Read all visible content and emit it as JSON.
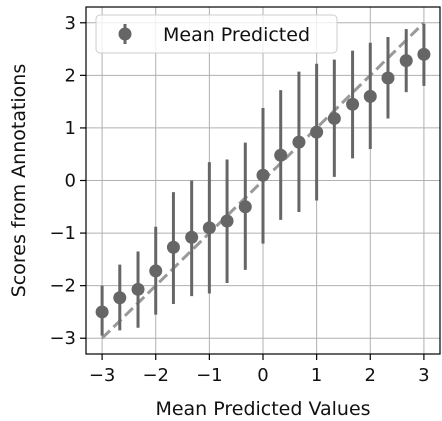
{
  "chart_data": {
    "type": "scatter",
    "title": "",
    "xlabel": "Mean Predicted Values",
    "ylabel": "Scores from Annotations",
    "xlim": [
      -3.3,
      3.3
    ],
    "ylim": [
      -3.3,
      3.3
    ],
    "xticks": [
      -3,
      -2,
      -1,
      0,
      1,
      2,
      3
    ],
    "yticks": [
      -3,
      -2,
      -1,
      0,
      1,
      2,
      3
    ],
    "xtick_labels": [
      "−3",
      "−2",
      "−1",
      "0",
      "1",
      "2",
      "3"
    ],
    "ytick_labels": [
      "−3",
      "−2",
      "−1",
      "0",
      "1",
      "2",
      "3"
    ],
    "grid": true,
    "legend": {
      "position": "top-left",
      "entries": [
        "Mean Predicted"
      ]
    },
    "marker_color": "#666666",
    "reference_line": {
      "style": "dashed",
      "color": "#999999",
      "from": [
        -3,
        -3
      ],
      "to": [
        3,
        3
      ]
    },
    "series": [
      {
        "name": "Mean Predicted",
        "points": [
          {
            "x": -3.0,
            "y": -2.5,
            "low": -2.95,
            "high": -2.0
          },
          {
            "x": -2.67,
            "y": -2.23,
            "low": -2.85,
            "high": -1.6
          },
          {
            "x": -2.33,
            "y": -2.07,
            "low": -2.8,
            "high": -1.35
          },
          {
            "x": -2.0,
            "y": -1.72,
            "low": -2.55,
            "high": -0.88
          },
          {
            "x": -1.67,
            "y": -1.27,
            "low": -2.35,
            "high": -0.22
          },
          {
            "x": -1.33,
            "y": -1.08,
            "low": -2.2,
            "high": 0.0
          },
          {
            "x": -1.0,
            "y": -0.9,
            "low": -2.15,
            "high": 0.35
          },
          {
            "x": -0.67,
            "y": -0.77,
            "low": -1.95,
            "high": 0.4
          },
          {
            "x": -0.33,
            "y": -0.5,
            "low": -1.7,
            "high": 0.72
          },
          {
            "x": 0.0,
            "y": 0.1,
            "low": -1.2,
            "high": 1.38
          },
          {
            "x": 0.33,
            "y": 0.48,
            "low": -0.75,
            "high": 1.72
          },
          {
            "x": 0.67,
            "y": 0.73,
            "low": -0.6,
            "high": 2.07
          },
          {
            "x": 1.0,
            "y": 0.92,
            "low": -0.38,
            "high": 2.22
          },
          {
            "x": 1.33,
            "y": 1.18,
            "low": 0.07,
            "high": 2.3
          },
          {
            "x": 1.67,
            "y": 1.45,
            "low": 0.42,
            "high": 2.47
          },
          {
            "x": 2.0,
            "y": 1.6,
            "low": 0.6,
            "high": 2.62
          },
          {
            "x": 2.33,
            "y": 1.95,
            "low": 1.18,
            "high": 2.73
          },
          {
            "x": 2.67,
            "y": 2.28,
            "low": 1.68,
            "high": 2.88
          },
          {
            "x": 3.0,
            "y": 2.4,
            "low": 1.8,
            "high": 2.98
          }
        ]
      }
    ]
  }
}
